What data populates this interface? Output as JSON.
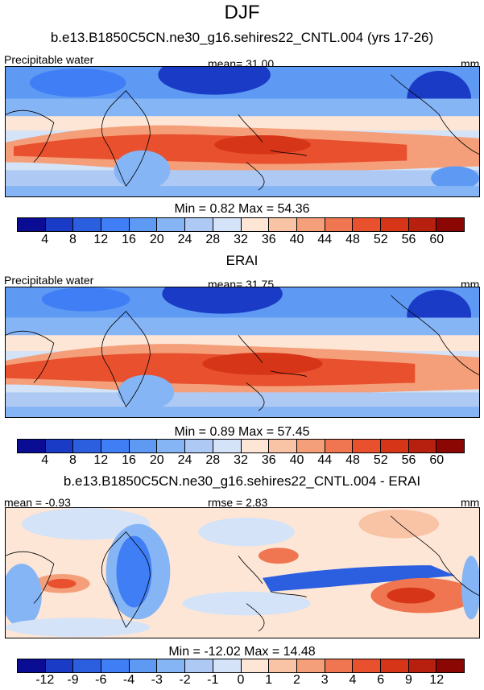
{
  "title": "DJF",
  "panels": [
    {
      "id": "model",
      "header": "b.e13.B1850C5CN.ne30_g16.sehires22_CNTL.004 (yrs 17-26)",
      "left_label": "Precipitable water",
      "center_label": "mean=  31.00",
      "right_label": "mm",
      "minmax": "Min =   0.82 Max =  54.36"
    },
    {
      "id": "obs",
      "header": "ERAI",
      "left_label": "Precipitable water",
      "center_label": "mean=  31.75",
      "right_label": "mm",
      "minmax": "Min =   0.89 Max =  57.45"
    },
    {
      "id": "diff",
      "header": "b.e13.B1850C5CN.ne30_g16.sehires22_CNTL.004 - ERAI",
      "left_label": "mean =  -0.93",
      "center_label": "rmse =   2.83",
      "right_label": "mm",
      "minmax": "Min = -12.02 Max =  14.48"
    }
  ],
  "chart_data": [
    {
      "type": "heatmap",
      "title": "b.e13.B1850C5CN.ne30_g16.sehires22_CNTL.004 (yrs 17-26)",
      "variable": "Precipitable water",
      "units": "mm",
      "mean": 31.0,
      "min": 0.82,
      "max": 54.36,
      "levels": [
        "4",
        "8",
        "12",
        "16",
        "20",
        "24",
        "28",
        "32",
        "36",
        "40",
        "44",
        "48",
        "52",
        "56",
        "60"
      ],
      "colors": [
        "#0b0c94",
        "#1a3bc5",
        "#2c5fe0",
        "#3f7ef5",
        "#5e99f4",
        "#86b5f5",
        "#aecaf4",
        "#d4e3f7",
        "#fde6d6",
        "#f9c3a6",
        "#f49f79",
        "#ef7650",
        "#e8502e",
        "#d73518",
        "#b71f0e",
        "#8a0704"
      ]
    },
    {
      "type": "heatmap",
      "title": "ERAI",
      "variable": "Precipitable water",
      "units": "mm",
      "mean": 31.75,
      "min": 0.89,
      "max": 57.45,
      "levels": [
        "4",
        "8",
        "12",
        "16",
        "20",
        "24",
        "28",
        "32",
        "36",
        "40",
        "44",
        "48",
        "52",
        "56",
        "60"
      ],
      "colors": [
        "#0b0c94",
        "#1a3bc5",
        "#2c5fe0",
        "#3f7ef5",
        "#5e99f4",
        "#86b5f5",
        "#aecaf4",
        "#d4e3f7",
        "#fde6d6",
        "#f9c3a6",
        "#f49f79",
        "#ef7650",
        "#e8502e",
        "#d73518",
        "#b71f0e",
        "#8a0704"
      ]
    },
    {
      "type": "heatmap",
      "title": "b.e13.B1850C5CN.ne30_g16.sehires22_CNTL.004 - ERAI",
      "units": "mm",
      "mean": -0.93,
      "rmse": 2.83,
      "min": -12.02,
      "max": 14.48,
      "levels": [
        "-12",
        "-9",
        "-6",
        "-4",
        "-3",
        "-2",
        "-1",
        "0",
        "1",
        "2",
        "3",
        "4",
        "6",
        "9",
        "12"
      ],
      "colors": [
        "#0b0c94",
        "#1a3bc5",
        "#2c5fe0",
        "#3f7ef5",
        "#5e99f4",
        "#86b5f5",
        "#aecaf4",
        "#d4e3f7",
        "#fde6d6",
        "#f9c3a6",
        "#f49f79",
        "#ef7650",
        "#e8502e",
        "#d73518",
        "#b71f0e",
        "#8a0704"
      ]
    }
  ]
}
